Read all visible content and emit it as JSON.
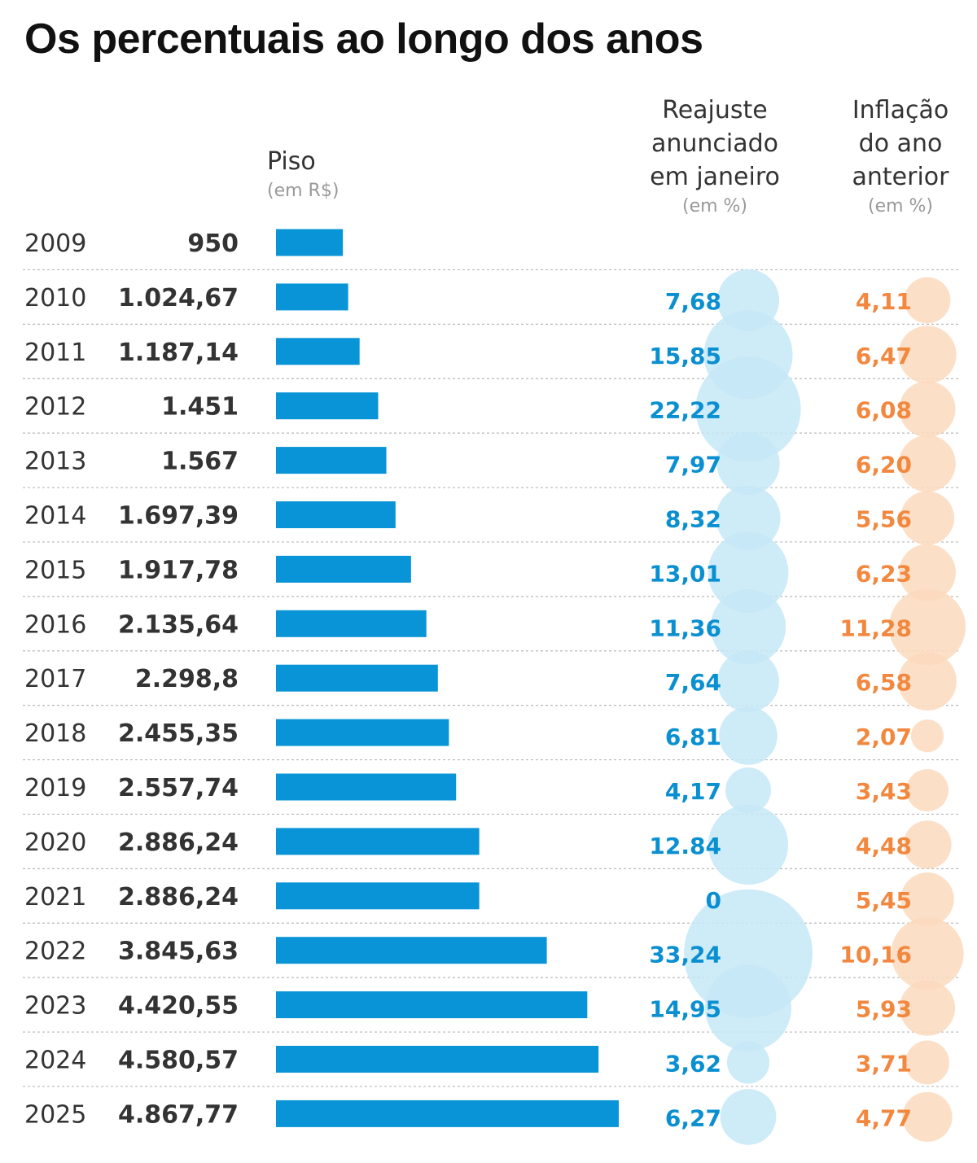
{
  "title": "Os percentuais ao longo dos anos",
  "columns": {
    "piso": {
      "label": "Piso",
      "unit": "(em R$)"
    },
    "reajuste": {
      "label_lines": [
        "Reajuste",
        "anunciado",
        "em janeiro"
      ],
      "unit": "(em %)"
    },
    "inflacao": {
      "label_lines": [
        "Inflação",
        "do ano",
        "anterior"
      ],
      "unit": "(em %)"
    }
  },
  "colors": {
    "bar": "#0894d6",
    "reajuste_text": "#0a8fd0",
    "reajuste_bubble": "#c6e7f7",
    "inflacao_text": "#f2883f",
    "inflacao_bubble": "#fbd9bd",
    "separator": "#b8b8b8"
  },
  "chart_data": {
    "type": "table",
    "rows": [
      {
        "year": "2009",
        "piso_label": "950",
        "piso": 950,
        "reajuste_label": "",
        "reajuste": null,
        "inflacao_label": "",
        "inflacao": null
      },
      {
        "year": "2010",
        "piso_label": "1.024,67",
        "piso": 1024.67,
        "reajuste_label": "7,68",
        "reajuste": 7.68,
        "inflacao_label": "4,11",
        "inflacao": 4.11
      },
      {
        "year": "2011",
        "piso_label": "1.187,14",
        "piso": 1187.14,
        "reajuste_label": "15,85",
        "reajuste": 15.85,
        "inflacao_label": "6,47",
        "inflacao": 6.47
      },
      {
        "year": "2012",
        "piso_label": "1.451",
        "piso": 1451,
        "reajuste_label": "22,22",
        "reajuste": 22.22,
        "inflacao_label": "6,08",
        "inflacao": 6.08
      },
      {
        "year": "2013",
        "piso_label": "1.567",
        "piso": 1567,
        "reajuste_label": "7,97",
        "reajuste": 7.97,
        "inflacao_label": "6,20",
        "inflacao": 6.2
      },
      {
        "year": "2014",
        "piso_label": "1.697,39",
        "piso": 1697.39,
        "reajuste_label": "8,32",
        "reajuste": 8.32,
        "inflacao_label": "5,56",
        "inflacao": 5.56
      },
      {
        "year": "2015",
        "piso_label": "1.917,78",
        "piso": 1917.78,
        "reajuste_label": "13,01",
        "reajuste": 13.01,
        "inflacao_label": "6,23",
        "inflacao": 6.23
      },
      {
        "year": "2016",
        "piso_label": "2.135,64",
        "piso": 2135.64,
        "reajuste_label": "11,36",
        "reajuste": 11.36,
        "inflacao_label": "11,28",
        "inflacao": 11.28
      },
      {
        "year": "2017",
        "piso_label": "2.298,8",
        "piso": 2298.8,
        "reajuste_label": "7,64",
        "reajuste": 7.64,
        "inflacao_label": "6,58",
        "inflacao": 6.58
      },
      {
        "year": "2018",
        "piso_label": "2.455,35",
        "piso": 2455.35,
        "reajuste_label": "6,81",
        "reajuste": 6.81,
        "inflacao_label": "2,07",
        "inflacao": 2.07
      },
      {
        "year": "2019",
        "piso_label": "2.557,74",
        "piso": 2557.74,
        "reajuste_label": "4,17",
        "reajuste": 4.17,
        "inflacao_label": "3,43",
        "inflacao": 3.43
      },
      {
        "year": "2020",
        "piso_label": "2.886,24",
        "piso": 2886.24,
        "reajuste_label": "12.84",
        "reajuste": 12.84,
        "inflacao_label": "4,48",
        "inflacao": 4.48
      },
      {
        "year": "2021",
        "piso_label": "2.886,24",
        "piso": 2886.24,
        "reajuste_label": "0",
        "reajuste": 0,
        "inflacao_label": "5,45",
        "inflacao": 5.45
      },
      {
        "year": "2022",
        "piso_label": "3.845,63",
        "piso": 3845.63,
        "reajuste_label": "33,24",
        "reajuste": 33.24,
        "inflacao_label": "10,16",
        "inflacao": 10.16
      },
      {
        "year": "2023",
        "piso_label": "4.420,55",
        "piso": 4420.55,
        "reajuste_label": "14,95",
        "reajuste": 14.95,
        "inflacao_label": "5,93",
        "inflacao": 5.93
      },
      {
        "year": "2024",
        "piso_label": "4.580,57",
        "piso": 4580.57,
        "reajuste_label": "3,62",
        "reajuste": 3.62,
        "inflacao_label": "3,71",
        "inflacao": 3.71
      },
      {
        "year": "2025",
        "piso_label": "4.867,77",
        "piso": 4867.77,
        "reajuste_label": "6,27",
        "reajuste": 6.27,
        "inflacao_label": "4,77",
        "inflacao": 4.77
      }
    ]
  }
}
